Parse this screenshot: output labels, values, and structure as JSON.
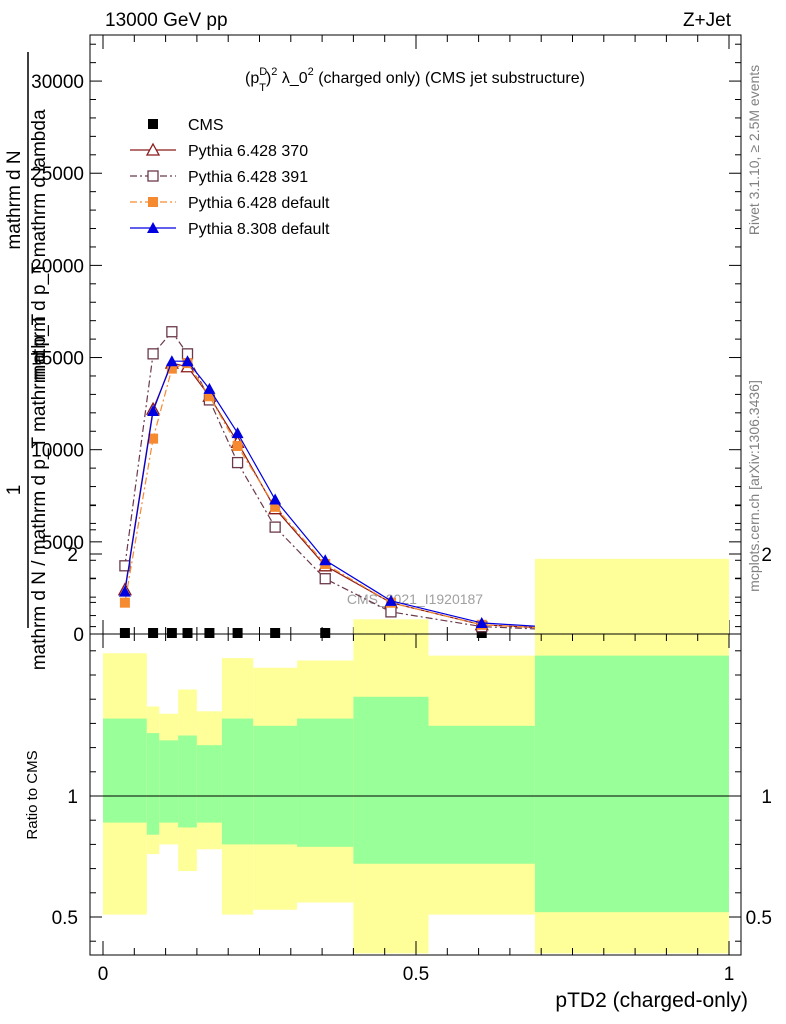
{
  "header": {
    "energy_label": "13000 GeV pp",
    "process_label": "Z+Jet"
  },
  "side_labels": {
    "rivet": "Rivet 3.1.10, ≥ 2.5M events",
    "site": "mcplots.cern.ch [arXiv:1306.3436]"
  },
  "chart_data": [
    {
      "type": "line",
      "title": "(p_T^D)^2 λ_0^2 (charged only) (CMS jet substructure)",
      "title_parts": {
        "a": "(p",
        "sup1": "D",
        "sub1": "T",
        "b": ")",
        "sup2": "2",
        "c": " λ_0",
        "sup3": "2",
        "d": " (charged only) (CMS jet substructure)"
      },
      "ylabel_lines": [
        "1",
        "mathrm d N / mathrm d p_T mathrm d p_T",
        "mathrm d N",
        "mathrm d p_T mathrm d lambda"
      ],
      "xlim": [
        0,
        1
      ],
      "ylim": [
        0,
        32500
      ],
      "yticks": [
        0,
        5000,
        10000,
        15000,
        20000,
        25000,
        30000
      ],
      "ytick_labels": [
        "0",
        "5000",
        "10000",
        "15000",
        "20000",
        "25000",
        "30000"
      ],
      "watermark": "CMS_2021_I1920187",
      "legend_position": "top-left",
      "x": [
        0.035,
        0.08,
        0.11,
        0.135,
        0.17,
        0.215,
        0.275,
        0.355,
        0.46,
        0.605,
        0.845
      ],
      "series": [
        {
          "name": "CMS",
          "color": "#000000",
          "marker": "square",
          "values": [
            0,
            0,
            0,
            0,
            0,
            0,
            0,
            0,
            0,
            0,
            0
          ]
        },
        {
          "name": "Pythia 6.428 370",
          "color": "#8b1a1a",
          "marker": "triangle-open",
          "dash": "",
          "values": [
            2400,
            12200,
            14700,
            14500,
            12900,
            10400,
            6800,
            3700,
            1700,
            500,
            100
          ]
        },
        {
          "name": "Pythia 6.428 391",
          "color": "#6b3a4a",
          "marker": "square-open",
          "dash": "7,3,2,3",
          "values": [
            3700,
            15200,
            16400,
            15200,
            12700,
            9300,
            5800,
            3000,
            1200,
            400,
            50
          ]
        },
        {
          "name": "Pythia 6.428 default",
          "color": "#f58a30",
          "marker": "square",
          "dash": "7,3,2,3",
          "values": [
            1700,
            10600,
            14400,
            14700,
            12900,
            10200,
            6900,
            3800,
            1700,
            500,
            80
          ]
        },
        {
          "name": "Pythia 8.308 default",
          "color": "#0000e0",
          "marker": "triangle",
          "dash": "",
          "values": [
            2300,
            12100,
            14800,
            14800,
            13300,
            10900,
            7300,
            4000,
            1800,
            600,
            100
          ]
        }
      ]
    },
    {
      "type": "area",
      "ylabel": "Ratio to CMS",
      "xlabel": "pTD2 (charged-only)",
      "xlim": [
        0,
        1
      ],
      "ylim": [
        0.35,
        2.3
      ],
      "xticks": [
        0,
        0.5,
        1
      ],
      "xtick_labels": [
        "0",
        "0.5",
        "1"
      ],
      "yticks": [
        0.5,
        1,
        2
      ],
      "ytick_labels": [
        "0.5",
        "1",
        "2"
      ],
      "bins": [
        {
          "x0": 0.0,
          "x1": 0.07,
          "g": [
            0.89,
            1.32
          ],
          "y": [
            0.51,
            1.59
          ]
        },
        {
          "x0": 0.07,
          "x1": 0.09,
          "g": [
            0.84,
            1.26
          ],
          "y": [
            0.76,
            1.37
          ]
        },
        {
          "x0": 0.09,
          "x1": 0.12,
          "g": [
            0.89,
            1.23
          ],
          "y": [
            0.8,
            1.34
          ]
        },
        {
          "x0": 0.12,
          "x1": 0.15,
          "g": [
            0.87,
            1.25
          ],
          "y": [
            0.69,
            1.44
          ]
        },
        {
          "x0": 0.15,
          "x1": 0.19,
          "g": [
            0.89,
            1.21
          ],
          "y": [
            0.78,
            1.35
          ]
        },
        {
          "x0": 0.19,
          "x1": 0.24,
          "g": [
            0.8,
            1.32
          ],
          "y": [
            0.51,
            1.57
          ]
        },
        {
          "x0": 0.24,
          "x1": 0.31,
          "g": [
            0.8,
            1.29
          ],
          "y": [
            0.53,
            1.53
          ]
        },
        {
          "x0": 0.31,
          "x1": 0.4,
          "g": [
            0.79,
            1.32
          ],
          "y": [
            0.56,
            1.56
          ]
        },
        {
          "x0": 0.4,
          "x1": 0.52,
          "g": [
            0.72,
            1.41
          ],
          "y": [
            0.35,
            1.73
          ]
        },
        {
          "x0": 0.52,
          "x1": 0.69,
          "g": [
            0.72,
            1.29
          ],
          "y": [
            0.51,
            1.58
          ]
        },
        {
          "x0": 0.69,
          "x1": 1.0,
          "g": [
            0.52,
            1.58
          ],
          "y": [
            0.35,
            1.98
          ]
        }
      ]
    }
  ]
}
